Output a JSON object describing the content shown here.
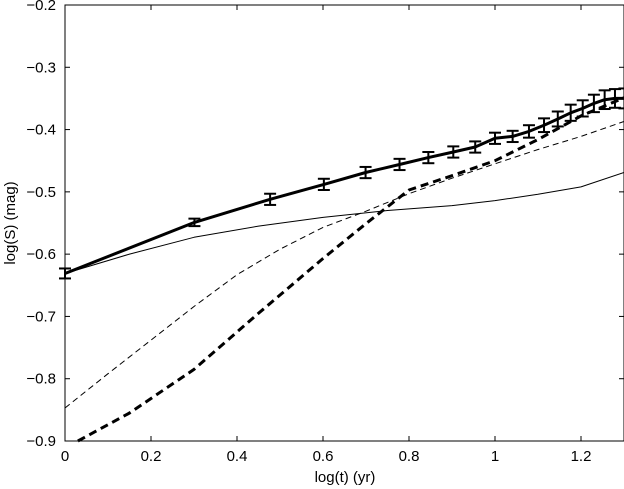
{
  "chart_data": {
    "type": "line",
    "title": "",
    "xlabel": "log(t) (yr)",
    "ylabel": "log(S) (mag)",
    "xlim": [
      0,
      1.3
    ],
    "ylim": [
      -0.9,
      -0.2
    ],
    "xticks": [
      0,
      0.2,
      0.4,
      0.6,
      0.8,
      1,
      1.2
    ],
    "xtick_labels": [
      "0",
      "0.2",
      "0.4",
      "0.6",
      "0.8",
      "1",
      "1.2"
    ],
    "yticks": [
      -0.9,
      -0.8,
      -0.7,
      -0.6,
      -0.5,
      -0.4,
      -0.3,
      -0.2
    ],
    "ytick_labels": [
      "−0.9",
      "−0.8",
      "−0.7",
      "−0.6",
      "−0.5",
      "−0.4",
      "−0.3",
      "−0.2"
    ],
    "grid": false,
    "legend": "none",
    "series": [
      {
        "style": "thick-solid-errorbars",
        "color": "#000000",
        "x": [
          0,
          0.301,
          0.477,
          0.602,
          0.699,
          0.778,
          0.845,
          0.903,
          0.954,
          1.0,
          1.041,
          1.079,
          1.114,
          1.146,
          1.176,
          1.204,
          1.23,
          1.255,
          1.279,
          1.301
        ],
        "y": [
          -0.631,
          -0.549,
          -0.512,
          -0.488,
          -0.469,
          -0.456,
          -0.445,
          -0.436,
          -0.428,
          -0.414,
          -0.411,
          -0.403,
          -0.393,
          -0.383,
          -0.373,
          -0.366,
          -0.358,
          -0.352,
          -0.35,
          -0.35
        ],
        "yerr": [
          0.008,
          0.006,
          0.009,
          0.009,
          0.009,
          0.009,
          0.009,
          0.009,
          0.009,
          0.009,
          0.009,
          0.01,
          0.011,
          0.012,
          0.013,
          0.013,
          0.014,
          0.015,
          0.015,
          0.016
        ]
      },
      {
        "style": "thin-solid",
        "color": "#000000",
        "x": [
          0,
          0.15,
          0.3,
          0.45,
          0.6,
          0.75,
          0.9,
          1.0,
          1.1,
          1.2,
          1.3
        ],
        "y": [
          -0.631,
          -0.6,
          -0.573,
          -0.555,
          -0.541,
          -0.53,
          -0.522,
          -0.514,
          -0.504,
          -0.492,
          -0.469
        ]
      },
      {
        "style": "thin-dashed",
        "color": "#000000",
        "x": [
          0,
          0.1,
          0.2,
          0.3,
          0.4,
          0.5,
          0.6,
          0.7,
          0.8,
          0.9,
          1.0,
          1.1,
          1.2,
          1.3
        ],
        "y": [
          -0.847,
          -0.792,
          -0.738,
          -0.684,
          -0.633,
          -0.592,
          -0.557,
          -0.531,
          -0.503,
          -0.478,
          -0.455,
          -0.432,
          -0.411,
          -0.387
        ]
      },
      {
        "style": "thick-dashed",
        "color": "#000000",
        "x": [
          0.03,
          0.15,
          0.3,
          0.45,
          0.6,
          0.7,
          0.8,
          0.9,
          1.0,
          1.1,
          1.2,
          1.3
        ],
        "y": [
          -0.9,
          -0.855,
          -0.785,
          -0.695,
          -0.607,
          -0.551,
          -0.497,
          -0.474,
          -0.45,
          -0.416,
          -0.378,
          -0.349
        ]
      }
    ]
  }
}
